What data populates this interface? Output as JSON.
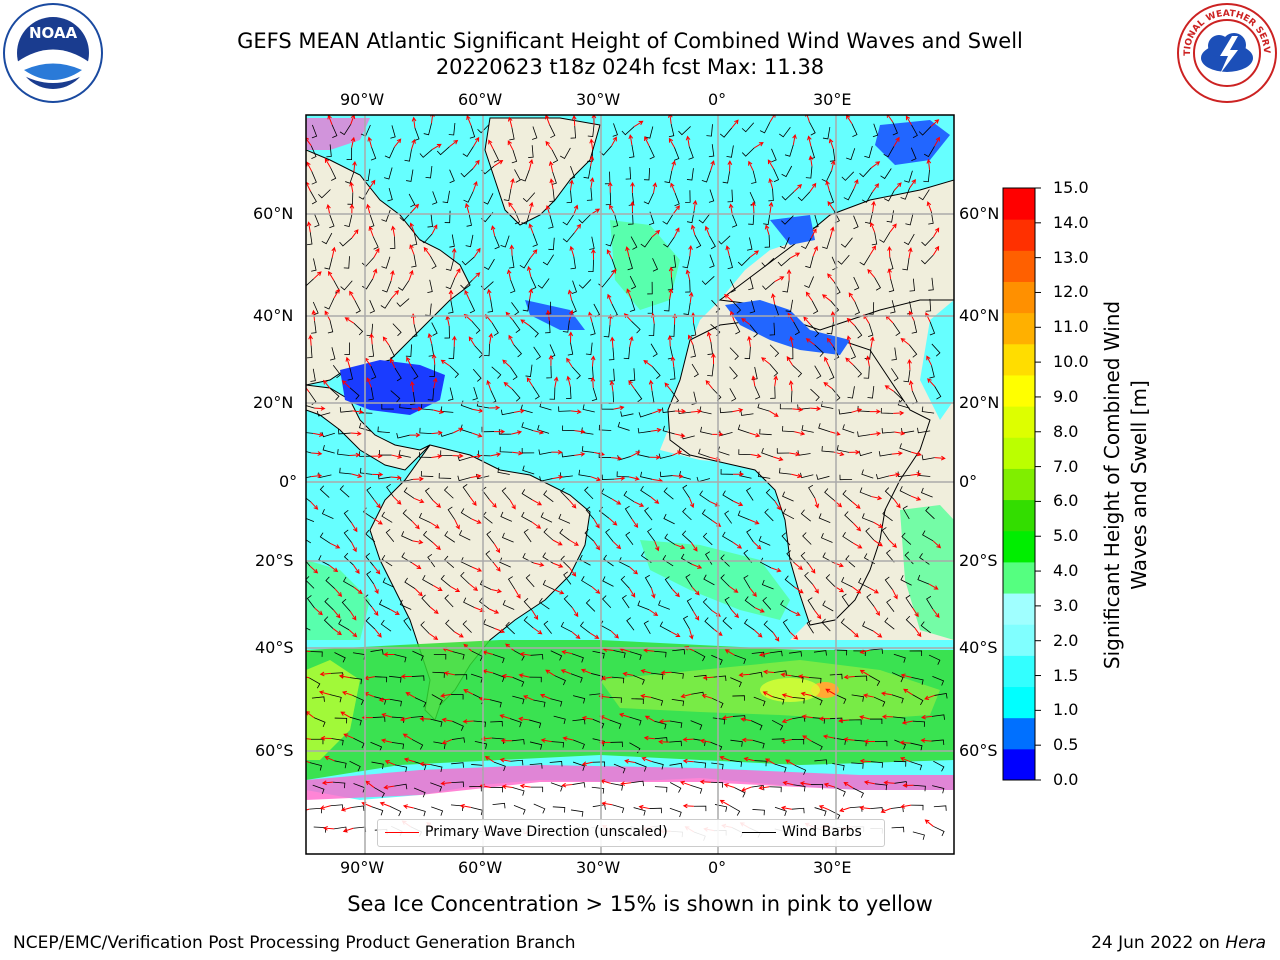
{
  "title": {
    "line1": "GEFS MEAN Atlantic Significant Height of Combined Wind Waves and Swell",
    "line2": "20220623 t18z 024h fcst   Max: 11.38"
  },
  "logos": {
    "left": {
      "name": "noaa-logo",
      "text": "NOAA"
    },
    "right": {
      "name": "nws-logo",
      "text": "NATIONAL WEATHER SERVICE"
    }
  },
  "map": {
    "lon_ticks": [
      "90°W",
      "60°W",
      "30°W",
      "0°",
      "30°E"
    ],
    "lat_ticks_left": [
      "60°N",
      "40°N",
      "20°N",
      "0°",
      "20°S",
      "40°S",
      "60°S"
    ],
    "lat_ticks_right": [
      "60°N",
      "40°N",
      "20°N",
      "0°",
      "20°S",
      "40°S",
      "60°S"
    ]
  },
  "legend": {
    "wave_dir_label": "Primary Wave Direction (unscaled)",
    "wave_dir_color": "#ff0000",
    "wind_barb_label": "Wind Barbs",
    "wind_barb_color": "#000000"
  },
  "colorbar": {
    "label": "Significant Height of Combined Wind Waves and Swell [m]",
    "ticks": [
      "15.0",
      "14.0",
      "13.0",
      "12.0",
      "11.0",
      "10.0",
      "9.0",
      "8.0",
      "7.0",
      "6.0",
      "5.0",
      "4.0",
      "3.0",
      "2.0",
      "1.5",
      "1.0",
      "0.5",
      "0.0"
    ],
    "colors": [
      "#0000ff",
      "#0070ff",
      "#00ffff",
      "#33ffff",
      "#80ffff",
      "#a0ffff",
      "#55ff80",
      "#00ee00",
      "#33dd00",
      "#80ee00",
      "#bbff00",
      "#ddff00",
      "#ffff00",
      "#ffdd00",
      "#ffb000",
      "#ff9000",
      "#ff6000",
      "#ff3000",
      "#ff0000"
    ]
  },
  "caption": "Sea Ice Concentration > 15% is shown in pink to yellow",
  "footer": {
    "left": "NCEP/EMC/Verification Post Processing Product Generation Branch",
    "right_prefix": "24 Jun 2022 on ",
    "right_host": "Hera"
  }
}
